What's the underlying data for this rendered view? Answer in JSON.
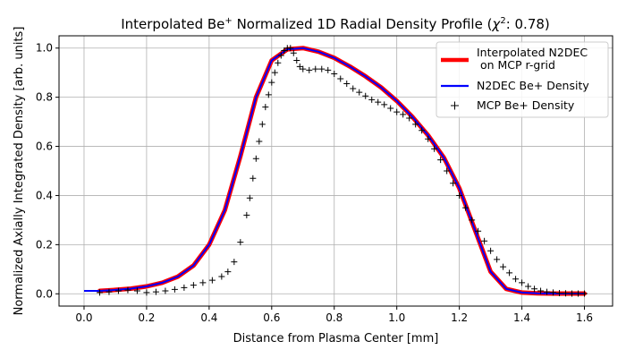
{
  "chart_data": {
    "type": "line",
    "title_main": "Interpolated Be",
    "title_sup": "+",
    "title_rest": " Normalized 1D Radial Density Profile (",
    "title_chi": "χ",
    "title_chi_sup": "2",
    "title_end": ": 0.78)",
    "xlabel": "Distance from Plasma Center [mm]",
    "ylabel": "Normalized Axially Integrated Density [arb. units]",
    "xlim": [
      -0.08,
      1.69
    ],
    "ylim": [
      -0.05,
      1.05
    ],
    "xticks": [
      0.0,
      0.2,
      0.4,
      0.6,
      0.8,
      1.0,
      1.2,
      1.4,
      1.6
    ],
    "xtick_labels": [
      "0.0",
      "0.2",
      "0.4",
      "0.6",
      "0.8",
      "1.0",
      "1.2",
      "1.4",
      "1.6"
    ],
    "yticks": [
      0.0,
      0.2,
      0.4,
      0.6,
      0.8,
      1.0
    ],
    "ytick_labels": [
      "0.0",
      "0.2",
      "0.4",
      "0.6",
      "0.8",
      "1.0"
    ],
    "grid": true,
    "legend_position": "top-right",
    "colors": {
      "interp": "#ff0000",
      "n2dec": "#0000ff",
      "mcp": "#000000",
      "grid": "#b0b0b0"
    },
    "series": [
      {
        "name": "Interpolated N2DEC\n on MCP r-grid",
        "style": "thick-line",
        "x": [
          0.05,
          0.1,
          0.15,
          0.2,
          0.25,
          0.3,
          0.35,
          0.4,
          0.45,
          0.5,
          0.55,
          0.6,
          0.65,
          0.7,
          0.75,
          0.8,
          0.85,
          0.9,
          0.95,
          1.0,
          1.05,
          1.1,
          1.15,
          1.2,
          1.25,
          1.3,
          1.35,
          1.4,
          1.45,
          1.5,
          1.55,
          1.6
        ],
        "y": [
          0.012,
          0.016,
          0.021,
          0.03,
          0.045,
          0.07,
          0.115,
          0.2,
          0.34,
          0.56,
          0.8,
          0.95,
          0.995,
          1.0,
          0.985,
          0.96,
          0.925,
          0.885,
          0.84,
          0.785,
          0.72,
          0.645,
          0.555,
          0.43,
          0.26,
          0.09,
          0.02,
          0.005,
          0.002,
          0.001,
          0.001,
          0.001
        ]
      },
      {
        "name": "N2DEC Be+ Density",
        "style": "line",
        "x": [
          0.0,
          0.05,
          0.1,
          0.15,
          0.2,
          0.25,
          0.3,
          0.35,
          0.4,
          0.45,
          0.5,
          0.55,
          0.6,
          0.65,
          0.7,
          0.75,
          0.8,
          0.85,
          0.9,
          0.95,
          1.0,
          1.05,
          1.1,
          1.15,
          1.2,
          1.25,
          1.3,
          1.35,
          1.4,
          1.45,
          1.5,
          1.55,
          1.6
        ],
        "y": [
          0.012,
          0.012,
          0.016,
          0.021,
          0.03,
          0.045,
          0.07,
          0.115,
          0.2,
          0.34,
          0.56,
          0.8,
          0.95,
          0.995,
          1.0,
          0.985,
          0.96,
          0.925,
          0.885,
          0.84,
          0.785,
          0.72,
          0.645,
          0.555,
          0.43,
          0.26,
          0.09,
          0.02,
          0.005,
          0.002,
          0.001,
          0.001,
          0.001
        ]
      },
      {
        "name": "MCP Be+ Density",
        "style": "markers",
        "x": [
          0.05,
          0.08,
          0.11,
          0.14,
          0.17,
          0.2,
          0.23,
          0.26,
          0.29,
          0.32,
          0.35,
          0.38,
          0.41,
          0.44,
          0.46,
          0.48,
          0.5,
          0.52,
          0.53,
          0.54,
          0.55,
          0.56,
          0.57,
          0.58,
          0.59,
          0.6,
          0.61,
          0.62,
          0.63,
          0.64,
          0.65,
          0.66,
          0.67,
          0.68,
          0.69,
          0.7,
          0.72,
          0.74,
          0.76,
          0.78,
          0.8,
          0.82,
          0.84,
          0.86,
          0.88,
          0.9,
          0.92,
          0.94,
          0.96,
          0.98,
          1.0,
          1.02,
          1.04,
          1.06,
          1.08,
          1.1,
          1.12,
          1.14,
          1.16,
          1.18,
          1.2,
          1.22,
          1.24,
          1.26,
          1.28,
          1.3,
          1.32,
          1.34,
          1.36,
          1.38,
          1.4,
          1.42,
          1.44,
          1.46,
          1.48,
          1.5,
          1.52,
          1.54,
          1.56,
          1.58,
          1.6
        ],
        "y": [
          0.005,
          0.008,
          0.012,
          0.015,
          0.012,
          0.005,
          0.008,
          0.012,
          0.018,
          0.025,
          0.035,
          0.045,
          0.055,
          0.07,
          0.09,
          0.13,
          0.21,
          0.32,
          0.39,
          0.47,
          0.55,
          0.62,
          0.69,
          0.76,
          0.81,
          0.86,
          0.9,
          0.94,
          0.97,
          0.99,
          1.0,
          1.0,
          0.98,
          0.95,
          0.925,
          0.915,
          0.91,
          0.915,
          0.915,
          0.91,
          0.895,
          0.875,
          0.855,
          0.835,
          0.82,
          0.805,
          0.79,
          0.78,
          0.77,
          0.755,
          0.74,
          0.73,
          0.715,
          0.69,
          0.665,
          0.63,
          0.59,
          0.545,
          0.5,
          0.45,
          0.4,
          0.35,
          0.3,
          0.255,
          0.215,
          0.175,
          0.14,
          0.11,
          0.085,
          0.06,
          0.045,
          0.03,
          0.02,
          0.012,
          0.008,
          0.005,
          0.003,
          0.002,
          0.001,
          0.001,
          0.001
        ]
      }
    ]
  }
}
